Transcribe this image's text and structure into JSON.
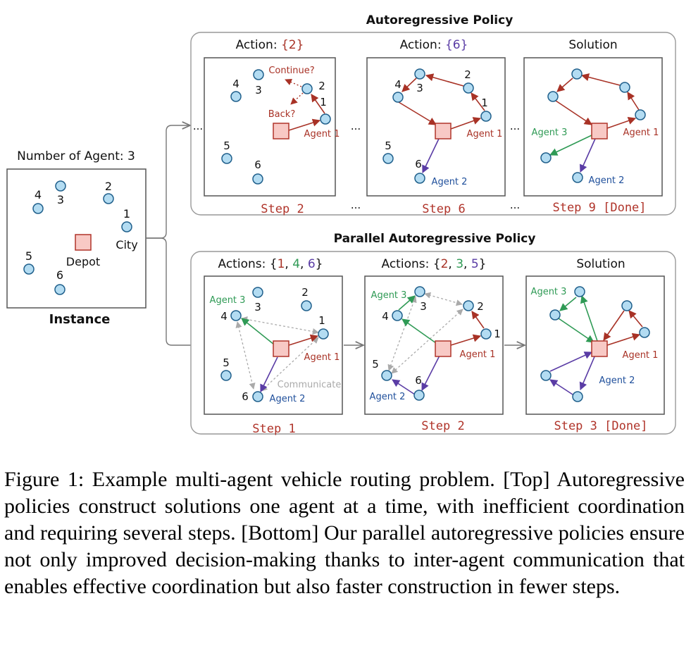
{
  "instance": {
    "header": "Number of Agent: 3",
    "label": "Instance",
    "depot_label": "Depot",
    "city_label": "City",
    "nodes": [
      "1",
      "2",
      "3",
      "4",
      "5",
      "6"
    ]
  },
  "top": {
    "title": "Autoregressive Policy",
    "panels": [
      {
        "header_prefix": "Action: ",
        "header_value": "{2}",
        "step": "Step 2"
      },
      {
        "header_prefix": "Action: ",
        "header_value": "{6}",
        "step": "Step 6"
      },
      {
        "header_prefix": "",
        "header_value": "Solution",
        "step": "Step 9 [Done]"
      }
    ],
    "continue_label": "Continue?",
    "back_label": "Back?",
    "ellipsis": "..."
  },
  "bottom": {
    "title": "Parallel Autoregressive Policy",
    "panels": [
      {
        "header_prefix": "Actions: ",
        "header_open": "{",
        "header_values": [
          "1",
          "4",
          "6"
        ],
        "header_close": "}",
        "step": "Step 1"
      },
      {
        "header_prefix": "Actions: ",
        "header_open": "{",
        "header_values": [
          "2",
          "3",
          "5"
        ],
        "header_close": "}",
        "step": "Step 2"
      },
      {
        "header_prefix": "",
        "header_value": "Solution",
        "step": "Step 3 [Done]"
      }
    ],
    "communicate_label": "Communicate"
  },
  "agents": {
    "a1": "Agent 1",
    "a2": "Agent 2",
    "a3": "Agent 3"
  },
  "colors": {
    "agent1": "#a83226",
    "agent2": "#5a3ca5",
    "agent3": "#2f9a55",
    "node_fill": "#b3dcf2",
    "node_stroke": "#1f5f8b",
    "depot_fill": "#f8c9c5",
    "depot_stroke": "#b0342a",
    "step_text": "#b0342a",
    "communicate": "#aaaaaa"
  },
  "caption": "Figure 1: Example multi-agent vehicle routing problem. [Top] Autoregressive policies construct solutions one agent at a time, with inefficient coordination and requiring several steps. [Bottom] Our parallel autoregressive policies ensure not only improved decision-making thanks to inter-agent communication that enables effective coordination but also faster construction in fewer steps."
}
